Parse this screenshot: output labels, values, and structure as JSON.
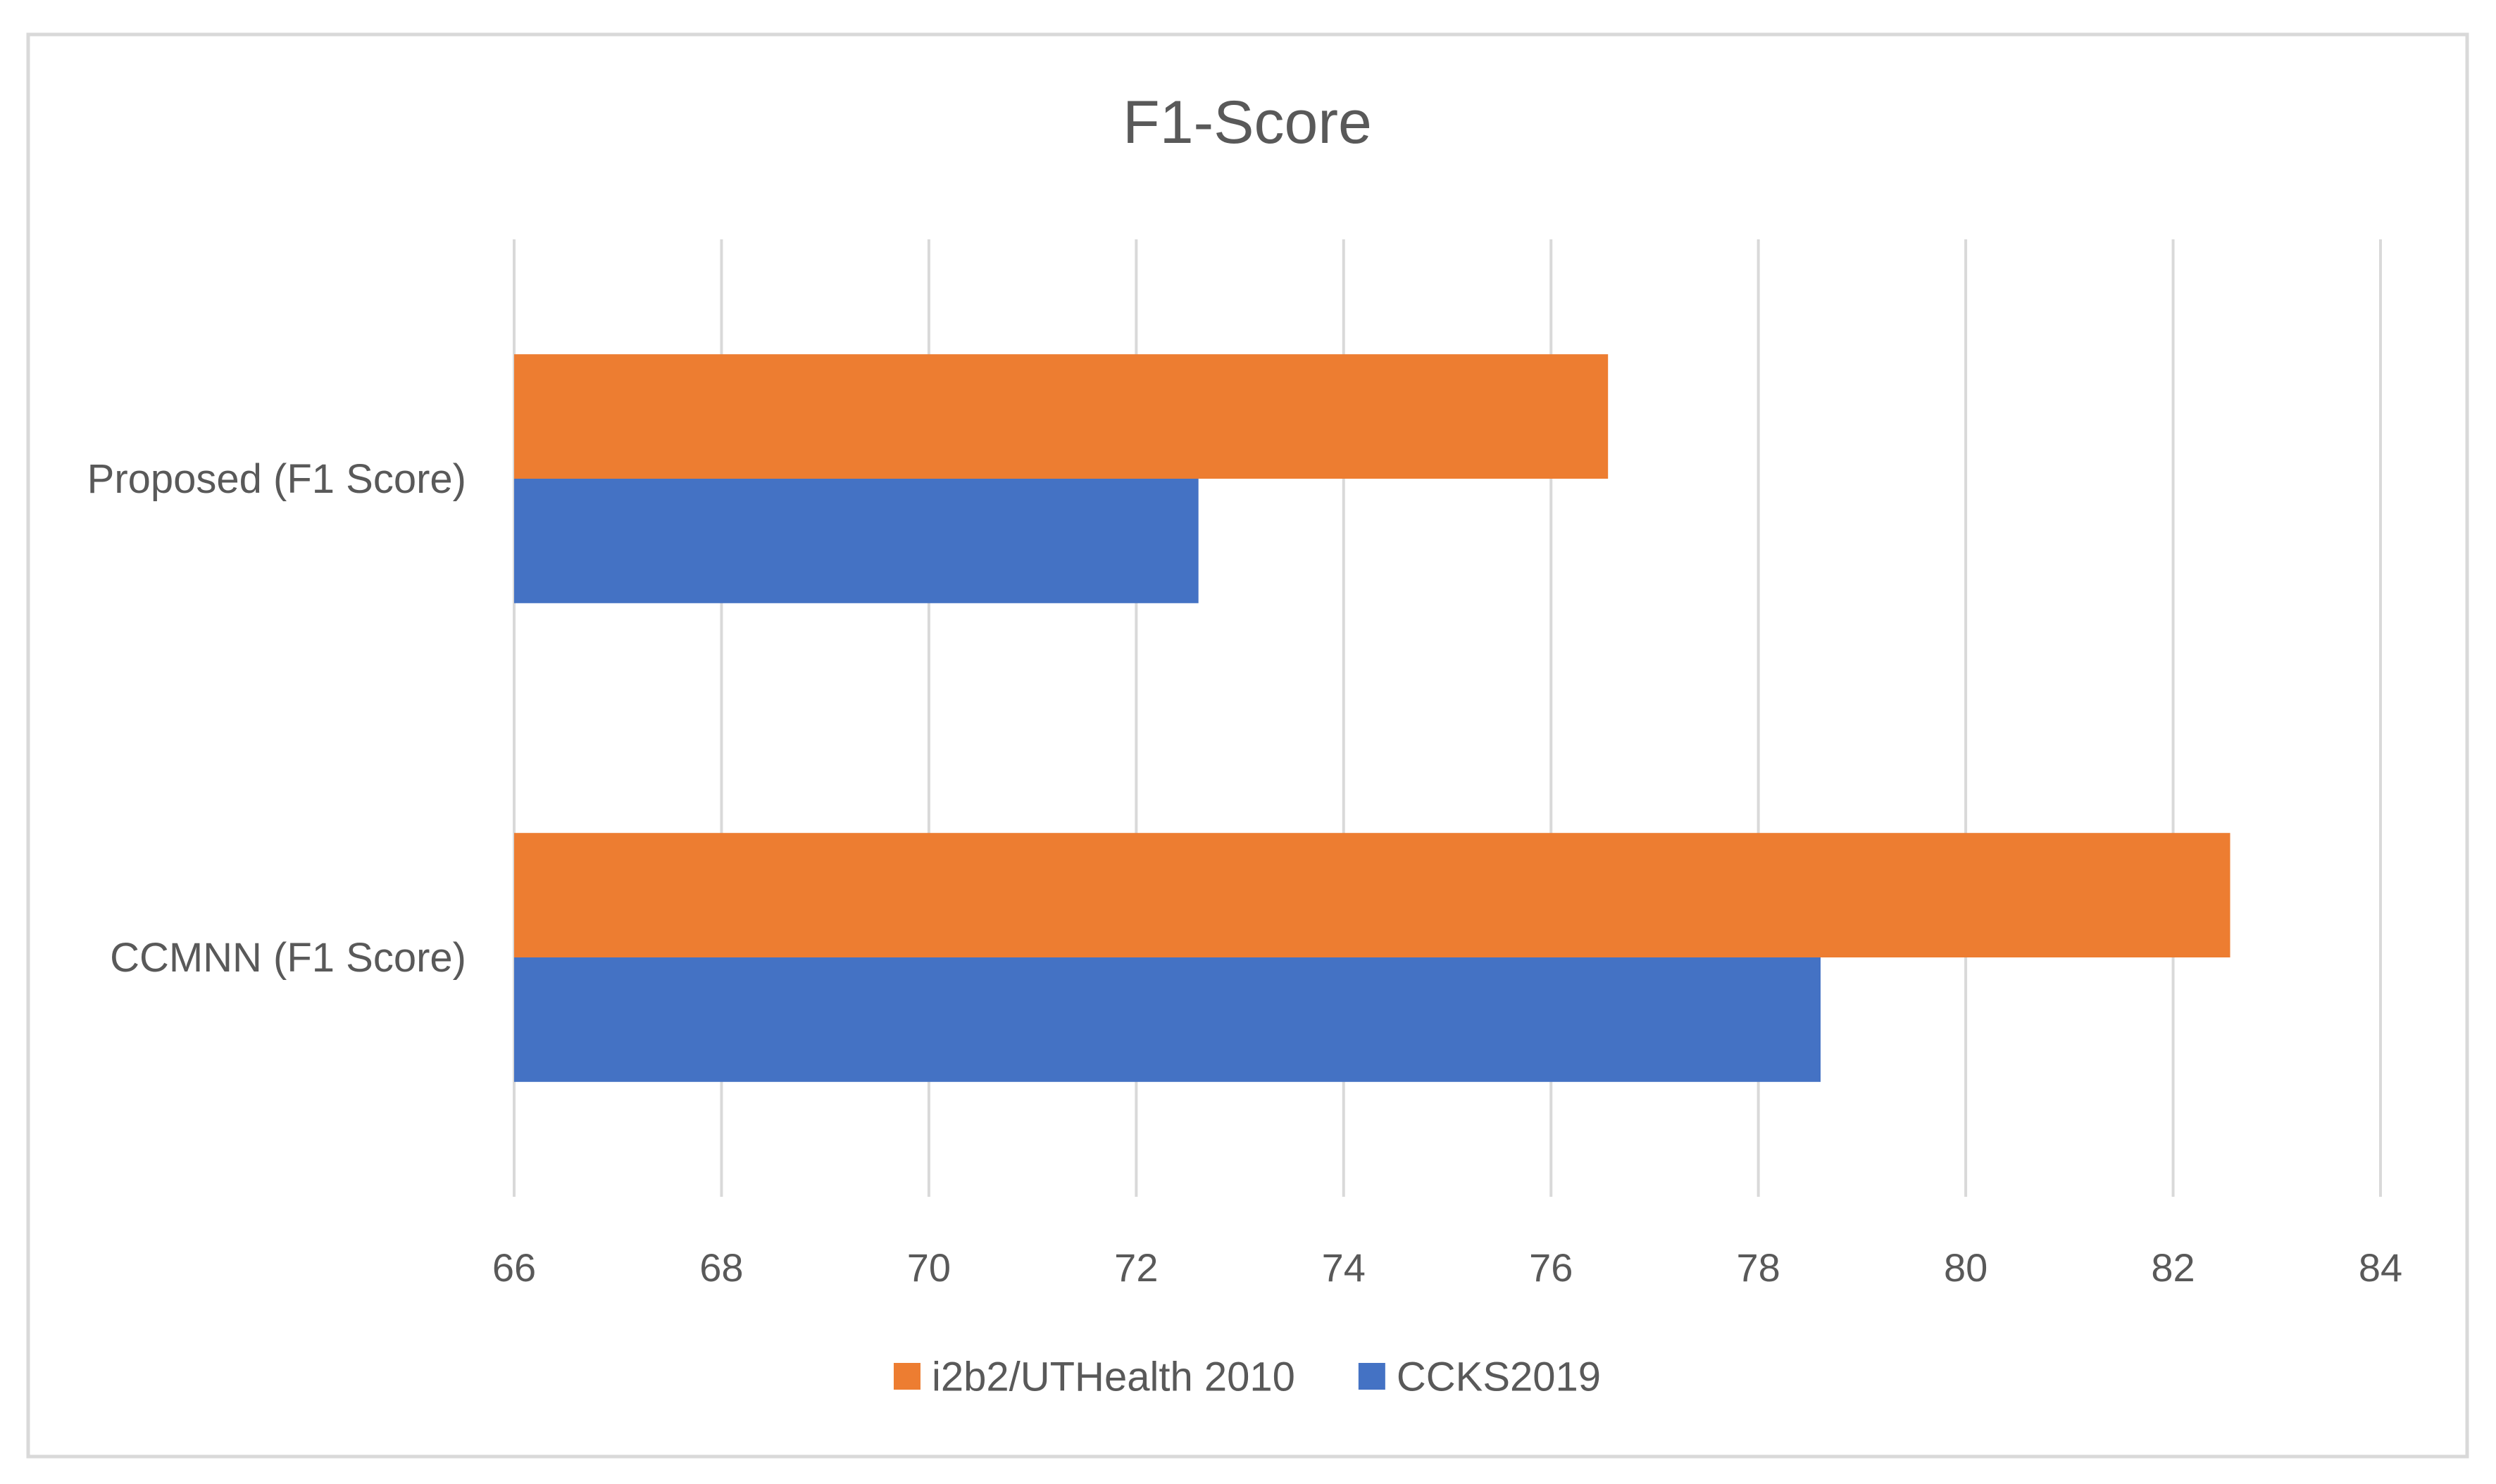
{
  "chart_data": {
    "type": "bar",
    "orientation": "horizontal",
    "title": "F1-Score",
    "categories": [
      "Proposed (F1 Score)",
      "CCMNN (F1 Score)"
    ],
    "series": [
      {
        "name": "i2b2/UTHealth 2010",
        "color": "#ED7D31",
        "values": [
          76.55,
          82.55
        ]
      },
      {
        "name": "CCKS2019",
        "color": "#4472C4",
        "values": [
          72.6,
          78.6
        ]
      }
    ],
    "xlim": [
      66,
      84
    ],
    "xticks": [
      66,
      68,
      70,
      72,
      74,
      76,
      78,
      80,
      82,
      84
    ],
    "grid": true,
    "legend_position": "bottom",
    "xlabel": "",
    "ylabel": ""
  }
}
